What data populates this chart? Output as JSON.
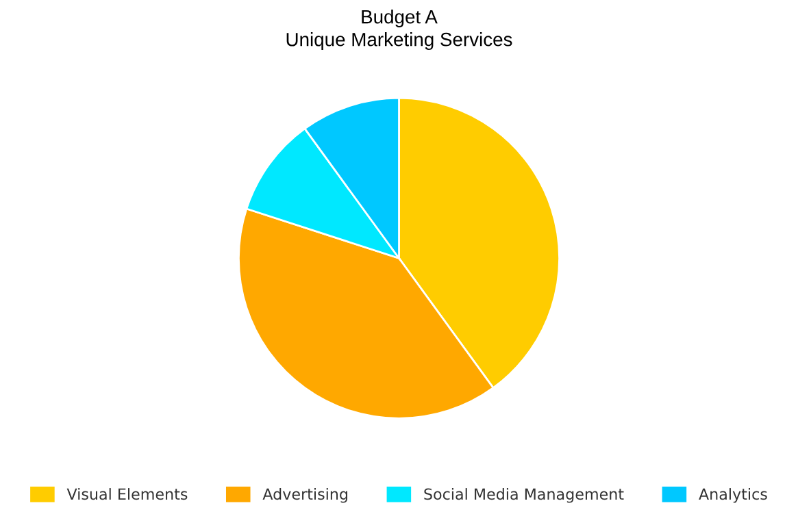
{
  "chart_data": {
    "type": "pie",
    "title": "Budget A",
    "subtitle": "Unique Marketing Services",
    "categories": [
      "Visual Elements",
      "Advertising",
      "Social Media Management",
      "Analytics"
    ],
    "values": [
      40,
      40,
      10,
      10
    ],
    "colors": [
      "#ffcc00",
      "#ffa800",
      "#00e8ff",
      "#00c8ff"
    ],
    "legend": "bottom"
  }
}
